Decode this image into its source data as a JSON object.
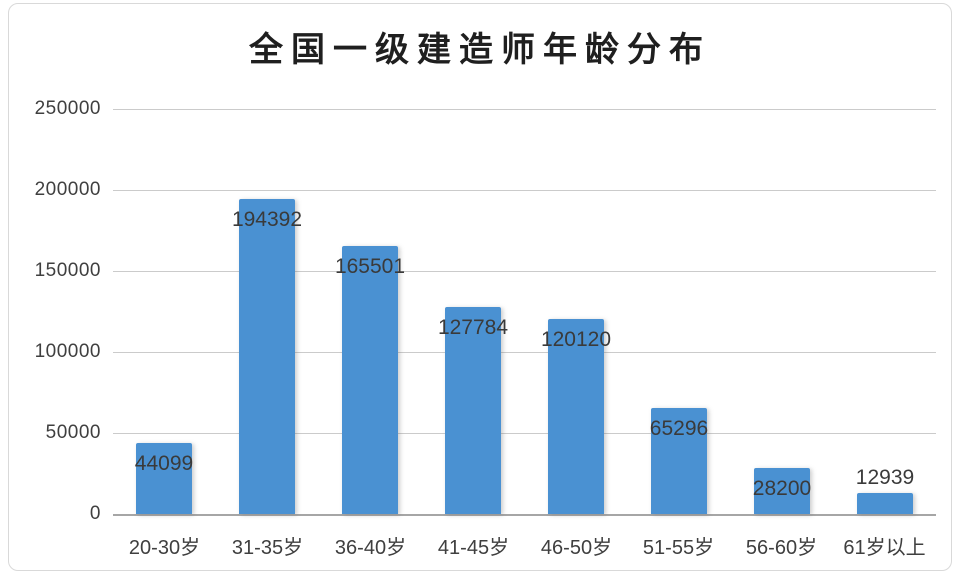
{
  "chart_data": {
    "type": "bar",
    "title": "全国一级建造师年龄分布",
    "categories": [
      "20-30岁",
      "31-35岁",
      "36-40岁",
      "41-45岁",
      "46-50岁",
      "51-55岁",
      "56-60岁",
      "61岁以上"
    ],
    "values": [
      44099,
      194392,
      165501,
      127784,
      120120,
      65296,
      28200,
      12939
    ],
    "data_labels": [
      44099,
      194392,
      165501,
      127784,
      120120,
      65296,
      28200,
      12939
    ],
    "xlabel": "",
    "ylabel": "",
    "ylim": [
      0,
      250000
    ],
    "ytick_step": 50000,
    "yticks": [
      "250000",
      "200000",
      "150000",
      "100000",
      "50000",
      "0"
    ],
    "grid": "horizontal-only",
    "legend": "none",
    "bar_color": "#4a91d2",
    "gridline_color": "#cbcbcb",
    "axis_line_color": "#a6a6a6",
    "text_color": "#3f3f3f"
  }
}
